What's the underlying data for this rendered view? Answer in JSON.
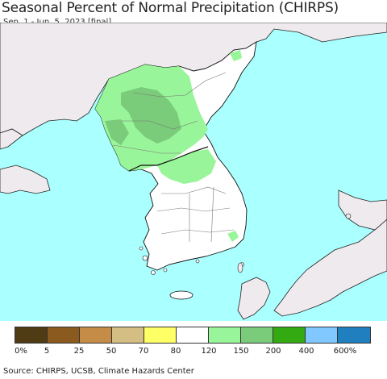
{
  "title": "Seasonal Percent of Normal Precipitation (CHIRPS)",
  "subtitle": "Sep. 1 - Jun. 5, 2023 [final]",
  "legend": {
    "colors": [
      "#4f3b14",
      "#8b5a1e",
      "#c48c47",
      "#d4be84",
      "#ffff66",
      "#ffffff",
      "#99f599",
      "#7acc7a",
      "#33aa11",
      "#80c8ff",
      "#1f7fbf"
    ],
    "ticks": [
      "0%",
      "5",
      "25",
      "50",
      "70",
      "80",
      "120",
      "150",
      "200",
      "400",
      "600%"
    ]
  },
  "source": "Source: CHIRPS, UCSB, Climate Hazards Center",
  "map_colors": {
    "sea": "#aaffff",
    "land_outside": "#eeeaee",
    "land_normal": "#ffffff",
    "land_wet": "#99f599",
    "land_wetter": "#7acc7a",
    "borders": "#111111",
    "provinces": "#777777"
  }
}
